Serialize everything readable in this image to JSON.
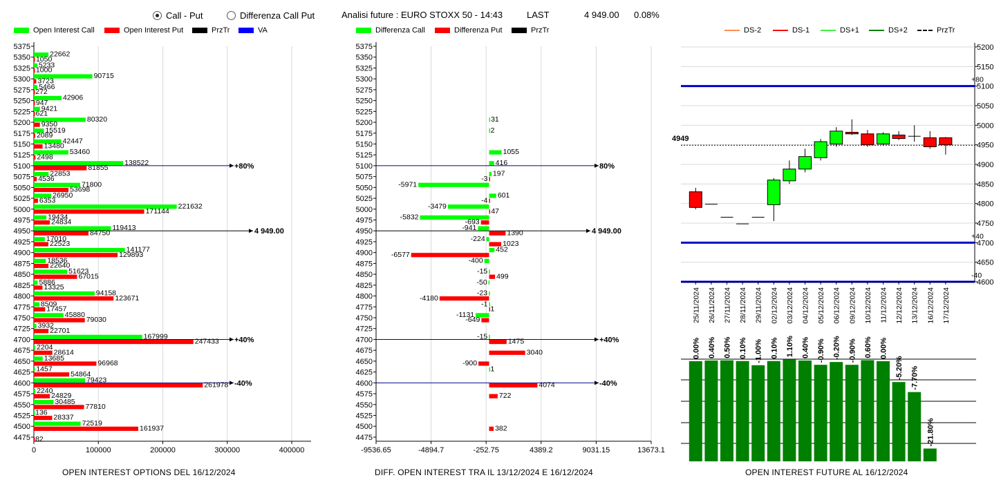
{
  "header": {
    "radio_call_put": "Call - Put",
    "radio_diff": "Differenza Call Put",
    "analysis_label": "Analisi future : EURO STOXX 50 - 14:43",
    "last_label": "LAST",
    "last_value": "4 949.00",
    "change": "0.08%"
  },
  "legends": {
    "left": [
      {
        "label": "Open Interest Call",
        "color": "#00ff00",
        "kind": "box"
      },
      {
        "label": "Open Interest Put",
        "color": "#ff0000",
        "kind": "box"
      },
      {
        "label": "PrzTr",
        "color": "#000000",
        "kind": "box"
      },
      {
        "label": "VA",
        "color": "#0000ff",
        "kind": "box"
      }
    ],
    "middle": [
      {
        "label": "Differenza Call",
        "color": "#00ff00",
        "kind": "box"
      },
      {
        "label": "Differenza Put",
        "color": "#ff0000",
        "kind": "box"
      },
      {
        "label": "PrzTr",
        "color": "#000000",
        "kind": "box"
      }
    ],
    "right": [
      {
        "label": "DS-2",
        "color": "#ff8c50",
        "kind": "line"
      },
      {
        "label": "DS-1",
        "color": "#ff0000",
        "kind": "line"
      },
      {
        "label": "DS+1",
        "color": "#44ee44",
        "kind": "line"
      },
      {
        "label": "DS+2",
        "color": "#008000",
        "kind": "line"
      },
      {
        "label": "PrzTr",
        "color": "#000000",
        "kind": "dash"
      }
    ]
  },
  "footers": {
    "left": "OPEN INTEREST OPTIONS DEL 16/12/2024",
    "middle": "DIFF. OPEN INTEREST TRA IL 13/12/2024 E 16/12/2024",
    "right": "OPEN INTEREST FUTURE AL 16/12/2024"
  },
  "colors": {
    "call": "#00ff00",
    "put": "#ff0000",
    "va": "#00008b",
    "price": "#000000",
    "future_bar": "#008000"
  },
  "chart_data": [
    {
      "type": "bar",
      "orientation": "horizontal",
      "strikes": [
        5375,
        5350,
        5325,
        5300,
        5275,
        5250,
        5225,
        5200,
        5175,
        5150,
        5125,
        5100,
        5075,
        5050,
        5025,
        5000,
        4975,
        4950,
        4925,
        4900,
        4875,
        4850,
        4825,
        4800,
        4775,
        4750,
        4725,
        4700,
        4675,
        4650,
        4625,
        4600,
        4575,
        4550,
        4525,
        4500,
        4475
      ],
      "series": [
        {
          "name": "Open Interest Call",
          "values": [
            null,
            22662,
            5233,
            90715,
            5466,
            42906,
            9421,
            80320,
            15519,
            42447,
            53460,
            138522,
            22853,
            71800,
            26950,
            221632,
            19434,
            119413,
            17010,
            141177,
            18536,
            51623,
            5886,
            94158,
            8509,
            45880,
            3932,
            167999,
            2204,
            13685,
            1457,
            79423,
            2240,
            30485,
            136,
            72519,
            null
          ]
        },
        {
          "name": "Open Interest Put",
          "values": [
            null,
            1050,
            1000,
            3723,
            272,
            947,
            621,
            9350,
            2089,
            13480,
            2498,
            81855,
            4536,
            53698,
            6353,
            171144,
            24834,
            84750,
            22523,
            129893,
            22640,
            67015,
            13325,
            123671,
            17457,
            79030,
            22701,
            247433,
            28614,
            96968,
            54864,
            261978,
            24829,
            77810,
            28337,
            161937,
            82
          ]
        }
      ],
      "price_line": {
        "strike": 4950,
        "label": "4 949.00"
      },
      "va_lines": [
        {
          "strike": 5100,
          "label": "+80%"
        },
        {
          "strike": 4700,
          "label": "+40%"
        },
        {
          "strike": 4600,
          "label": "-40%"
        }
      ],
      "x_ticks": [
        "0",
        "100000",
        "200000",
        "300000",
        "400000"
      ],
      "xlim": [
        0,
        430000
      ]
    },
    {
      "type": "bar",
      "orientation": "horizontal",
      "strikes": [
        5375,
        5350,
        5325,
        5300,
        5275,
        5250,
        5225,
        5200,
        5175,
        5150,
        5125,
        5100,
        5075,
        5050,
        5025,
        5000,
        4975,
        4950,
        4925,
        4900,
        4875,
        4850,
        4825,
        4800,
        4775,
        4750,
        4725,
        4700,
        4675,
        4650,
        4625,
        4600,
        4575,
        4550,
        4525,
        4500,
        4475
      ],
      "series": [
        {
          "name": "Differenza Call",
          "values": [
            null,
            null,
            null,
            null,
            null,
            null,
            null,
            31,
            2,
            null,
            1055,
            416,
            197,
            -5971,
            601,
            -3479,
            -5832,
            -941,
            -224,
            452,
            -400,
            -15,
            -50,
            -23,
            -1,
            -1131,
            null,
            -15,
            null,
            null,
            1,
            null,
            null,
            null,
            null,
            null,
            null
          ]
        },
        {
          "name": "Differenza Put",
          "values": [
            null,
            null,
            null,
            null,
            null,
            null,
            null,
            null,
            null,
            null,
            null,
            null,
            -3,
            null,
            -4,
            47,
            -693,
            1390,
            1023,
            -6577,
            null,
            499,
            null,
            -4180,
            1,
            -649,
            null,
            1475,
            3040,
            -900,
            null,
            4074,
            722,
            null,
            null,
            382,
            null
          ]
        }
      ],
      "price_line": {
        "strike": 4950,
        "label": "4 949.00"
      },
      "va_lines": [
        {
          "strike": 5100,
          "label": "80%"
        },
        {
          "strike": 4700,
          "label": "+40%"
        },
        {
          "strike": 4600,
          "label": "-40%"
        }
      ],
      "x_ticks": [
        "-9536.65",
        "-4894.7",
        "-252.75",
        "4389.2",
        "9031.15",
        "13673.1"
      ],
      "xlim": [
        -9536.65,
        13673.1
      ]
    },
    {
      "type": "candlestick",
      "dates": [
        "25/11/2024",
        "26/11/2024",
        "27/11/2024",
        "28/11/2024",
        "29/11/2024",
        "02/12/2024",
        "03/12/2024",
        "04/12/2024",
        "05/12/2024",
        "06/12/2024",
        "09/12/2024",
        "10/12/2024",
        "11/12/2024",
        "12/12/2024",
        "13/12/2024",
        "16/12/2024",
        "17/12/2024"
      ],
      "ohlc": [
        [
          4830,
          4840,
          4785,
          4790
        ],
        [
          4798,
          4798,
          4798,
          4798
        ],
        [
          4765,
          4765,
          4765,
          4765
        ],
        [
          4748,
          4748,
          4748,
          4748
        ],
        [
          4765,
          4765,
          4765,
          4765
        ],
        [
          4797,
          4865,
          4755,
          4860
        ],
        [
          4858,
          4910,
          4850,
          4888
        ],
        [
          4888,
          4940,
          4880,
          4920
        ],
        [
          4917,
          4965,
          4910,
          4958
        ],
        [
          4952,
          4995,
          4945,
          4985
        ],
        [
          4982,
          5015,
          4975,
          4978
        ],
        [
          4978,
          4988,
          4945,
          4950
        ],
        [
          4952,
          4982,
          4948,
          4978
        ],
        [
          4975,
          4985,
          4962,
          4966
        ],
        [
          4972,
          5000,
          4958,
          4970
        ],
        [
          4968,
          4985,
          4940,
          4945
        ],
        [
          4968,
          4970,
          4925,
          4950
        ]
      ],
      "price_level": {
        "value": 4949,
        "label": "4949"
      },
      "bands": [
        {
          "value": 5100,
          "label": "+80"
        },
        {
          "value": 4700,
          "label": "+40"
        },
        {
          "value": 4600,
          "label": "-40"
        }
      ],
      "y_ticks": [
        "5200",
        "5150",
        "5100",
        "5050",
        "5000",
        "4950",
        "4900",
        "4850",
        "4800",
        "4750",
        "4700",
        "4650",
        "4600"
      ],
      "ylim": [
        4600,
        5200
      ]
    },
    {
      "type": "bar",
      "categories": [
        "25/11/2024",
        "26/11/2024",
        "27/11/2024",
        "28/11/2024",
        "29/11/2024",
        "02/12/2024",
        "03/12/2024",
        "04/12/2024",
        "05/12/2024",
        "06/12/2024",
        "09/12/2024",
        "10/12/2024",
        "11/12/2024",
        "12/12/2024",
        "13/12/2024",
        "16/12/2024",
        "17/12/2024"
      ],
      "values": [
        0.0,
        0.4,
        0.5,
        0.1,
        -1.0,
        0.1,
        1.1,
        0.4,
        -0.9,
        -0.2,
        -0.9,
        0.6,
        0.0,
        -5.2,
        -7.7,
        -21.8,
        null
      ],
      "labels": [
        "0.00%",
        "0.40%",
        "0.50%",
        "0.10%",
        "-1.00%",
        "0.10%",
        "1.10%",
        "0.40%",
        "-0.90%",
        "-0.20%",
        "-0.90%",
        "0.60%",
        "0.00%",
        "-5.20%",
        "-7.70%",
        "-21.80%",
        ""
      ]
    }
  ]
}
